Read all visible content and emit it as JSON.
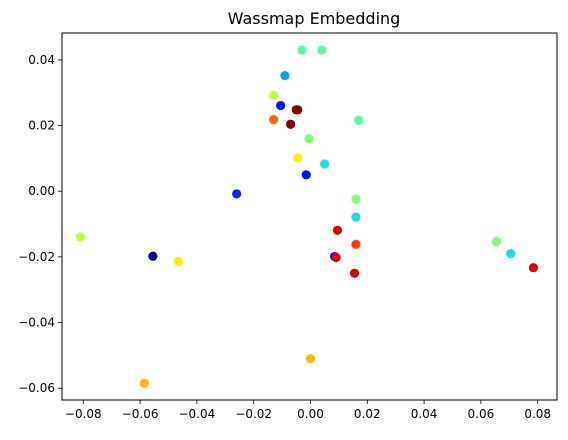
{
  "chart_data": {
    "type": "scatter",
    "title": "Wassmap Embedding",
    "xlabel": "",
    "ylabel": "",
    "xlim": [
      -0.0875,
      0.0868
    ],
    "ylim": [
      -0.0636,
      0.0482
    ],
    "xticks": [
      -0.08,
      -0.06,
      -0.04,
      -0.02,
      0.0,
      0.02,
      0.04,
      0.06,
      0.08
    ],
    "xtick_labels": [
      "−0.08",
      "−0.06",
      "−0.04",
      "−0.02",
      "0.00",
      "0.02",
      "0.04",
      "0.06",
      "0.08"
    ],
    "yticks": [
      0.04,
      0.02,
      0.0,
      -0.02,
      -0.04,
      -0.06
    ],
    "ytick_labels": [
      "0.04",
      "0.02",
      "0.00",
      "−0.02",
      "−0.04",
      "−0.06"
    ],
    "grid": false,
    "points": [
      {
        "x": -0.003,
        "y": 0.043,
        "color": "#4dffaa"
      },
      {
        "x": 0.004,
        "y": 0.043,
        "color": "#4dffaa"
      },
      {
        "x": -0.009,
        "y": 0.0352,
        "color": "#00a0ff"
      },
      {
        "x": -0.013,
        "y": 0.0292,
        "color": "#bfff37"
      },
      {
        "x": -0.0105,
        "y": 0.0261,
        "color": "#0014ff"
      },
      {
        "x": -0.005,
        "y": 0.0248,
        "color": "#7f0000"
      },
      {
        "x": -0.0045,
        "y": 0.0248,
        "color": "#7f0000"
      },
      {
        "x": -0.013,
        "y": 0.0218,
        "color": "#ff6800"
      },
      {
        "x": -0.007,
        "y": 0.0204,
        "color": "#7f0000"
      },
      {
        "x": 0.017,
        "y": 0.0216,
        "color": "#4dffaa"
      },
      {
        "x": -0.0005,
        "y": 0.016,
        "color": "#7dff7a"
      },
      {
        "x": -0.0045,
        "y": 0.0102,
        "color": "#fbf100"
      },
      {
        "x": 0.005,
        "y": 0.0083,
        "color": "#13e3e3"
      },
      {
        "x": -0.0015,
        "y": 0.005,
        "color": "#0014ff"
      },
      {
        "x": -0.026,
        "y": -0.0008,
        "color": "#0028ff"
      },
      {
        "x": 0.016,
        "y": -0.0024,
        "color": "#7dff7a"
      },
      {
        "x": 0.016,
        "y": -0.0079,
        "color": "#13e3e3"
      },
      {
        "x": 0.0095,
        "y": -0.0119,
        "color": "#e50000"
      },
      {
        "x": 0.016,
        "y": -0.0162,
        "color": "#ff3b00"
      },
      {
        "x": -0.081,
        "y": -0.0139,
        "color": "#bfff37"
      },
      {
        "x": -0.0555,
        "y": -0.0198,
        "color": "#000080"
      },
      {
        "x": -0.0465,
        "y": -0.0214,
        "color": "#fbf100"
      },
      {
        "x": 0.0085,
        "y": -0.0199,
        "color": "#0014ff"
      },
      {
        "x": 0.009,
        "y": -0.0202,
        "color": "#e50000"
      },
      {
        "x": 0.0155,
        "y": -0.025,
        "color": "#e50000"
      },
      {
        "x": 0.0655,
        "y": -0.0153,
        "color": "#7dff7a"
      },
      {
        "x": 0.0705,
        "y": -0.019,
        "color": "#13e3e3"
      },
      {
        "x": 0.0785,
        "y": -0.0233,
        "color": "#e50000"
      },
      {
        "x": 0.0,
        "y": -0.051,
        "color": "#ffb900"
      },
      {
        "x": -0.0585,
        "y": -0.0585,
        "color": "#ffb900"
      }
    ]
  }
}
